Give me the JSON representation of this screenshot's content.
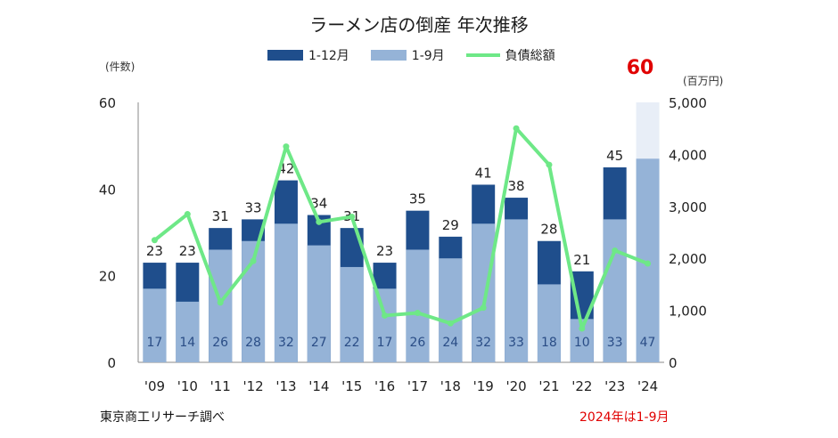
{
  "chart_data": {
    "type": "bar",
    "title": "ラーメン店の倒産 年次推移",
    "categories": [
      "'09",
      "'10",
      "'11",
      "'12",
      "'13",
      "'14",
      "'15",
      "'16",
      "'17",
      "'18",
      "'19",
      "'20",
      "'21",
      "'22",
      "'23",
      "'24"
    ],
    "series": [
      {
        "name": "1-12月",
        "type": "bar",
        "axis": "left",
        "values": [
          23,
          23,
          31,
          33,
          42,
          34,
          31,
          23,
          35,
          29,
          41,
          38,
          28,
          21,
          45,
          null
        ]
      },
      {
        "name": "1-9月",
        "type": "bar",
        "axis": "left",
        "values": [
          17,
          14,
          26,
          28,
          32,
          27,
          22,
          17,
          26,
          24,
          32,
          33,
          18,
          10,
          33,
          47
        ]
      },
      {
        "name": "負債総額",
        "type": "line",
        "axis": "right",
        "values": [
          2350,
          2850,
          1150,
          1950,
          4150,
          2700,
          2800,
          900,
          950,
          750,
          1050,
          4500,
          3800,
          650,
          2150,
          1900
        ]
      }
    ],
    "left_axis": {
      "label": "(件数)",
      "ylim": [
        0,
        60
      ],
      "ticks": [
        0,
        20,
        40,
        60
      ]
    },
    "right_axis": {
      "label": "(百万円)",
      "ylim": [
        0,
        5000
      ],
      "ticks": [
        "0",
        "1,000",
        "2,000",
        "3,000",
        "4,000",
        "5,000"
      ]
    },
    "highlight_2024": {
      "value": "60",
      "color": "#e00000"
    },
    "legend_position": "top",
    "grid": false,
    "colors": {
      "full_year": "#1f4e8c",
      "jan_sep": "#95b3d7",
      "debt_line": "#6ee887",
      "projection": "#e8eef7"
    }
  },
  "footer": {
    "source": "東京商工リサーチ調べ",
    "note": "2024年は1-9月"
  }
}
